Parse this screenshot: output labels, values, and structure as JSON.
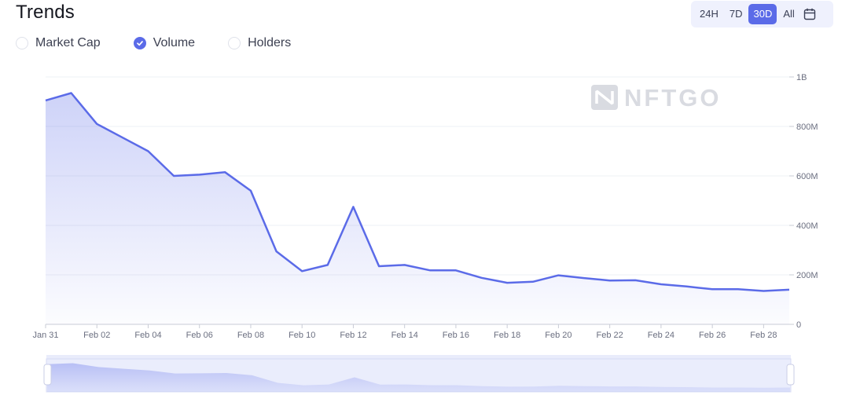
{
  "header": {
    "title": "Trends"
  },
  "range_buttons": [
    "24H",
    "7D",
    "30D",
    "All"
  ],
  "active_range": "30D",
  "icons": {
    "calendar": "calendar-icon",
    "check": "check-icon"
  },
  "metrics": [
    {
      "label": "Market Cap",
      "checked": false
    },
    {
      "label": "Volume",
      "checked": true
    },
    {
      "label": "Holders",
      "checked": false
    }
  ],
  "watermark": "NFTGO",
  "colors": {
    "accent": "#5b6be8",
    "line": "#5b6be8"
  },
  "chart_data": {
    "type": "area",
    "ylim": [
      0,
      1000000000
    ],
    "y_ticks": [
      "0",
      "200M",
      "400M",
      "600M",
      "800M",
      "1B"
    ],
    "x_ticks": [
      "Jan 31",
      "Feb 02",
      "Feb 04",
      "Feb 06",
      "Feb 08",
      "Feb 10",
      "Feb 12",
      "Feb 14",
      "Feb 16",
      "Feb 18",
      "Feb 20",
      "Feb 22",
      "Feb 24",
      "Feb 26",
      "Feb 28"
    ],
    "grid": true,
    "series": [
      {
        "values": [
          [
            "Jan 31",
            905000000
          ],
          [
            "Feb 01",
            935000000
          ],
          [
            "Feb 02",
            810000000
          ],
          [
            "Feb 03",
            755000000
          ],
          [
            "Feb 04",
            700000000
          ],
          [
            "Feb 05",
            600000000
          ],
          [
            "Feb 06",
            605000000
          ],
          [
            "Feb 07",
            615000000
          ],
          [
            "Feb 08",
            540000000
          ],
          [
            "Feb 09",
            295000000
          ],
          [
            "Feb 10",
            215000000
          ],
          [
            "Feb 11",
            240000000
          ],
          [
            "Feb 12",
            475000000
          ],
          [
            "Feb 13",
            235000000
          ],
          [
            "Feb 14",
            240000000
          ],
          [
            "Feb 15",
            218000000
          ],
          [
            "Feb 16",
            218000000
          ],
          [
            "Feb 17",
            188000000
          ],
          [
            "Feb 18",
            168000000
          ],
          [
            "Feb 19",
            172000000
          ],
          [
            "Feb 20",
            198000000
          ],
          [
            "Feb 21",
            187000000
          ],
          [
            "Feb 22",
            177000000
          ],
          [
            "Feb 23",
            178000000
          ],
          [
            "Feb 24",
            162000000
          ],
          [
            "Feb 25",
            153000000
          ],
          [
            "Feb 26",
            142000000
          ],
          [
            "Feb 27",
            142000000
          ],
          [
            "Feb 28",
            135000000
          ],
          [
            "Feb 29",
            140000000
          ]
        ]
      }
    ]
  }
}
